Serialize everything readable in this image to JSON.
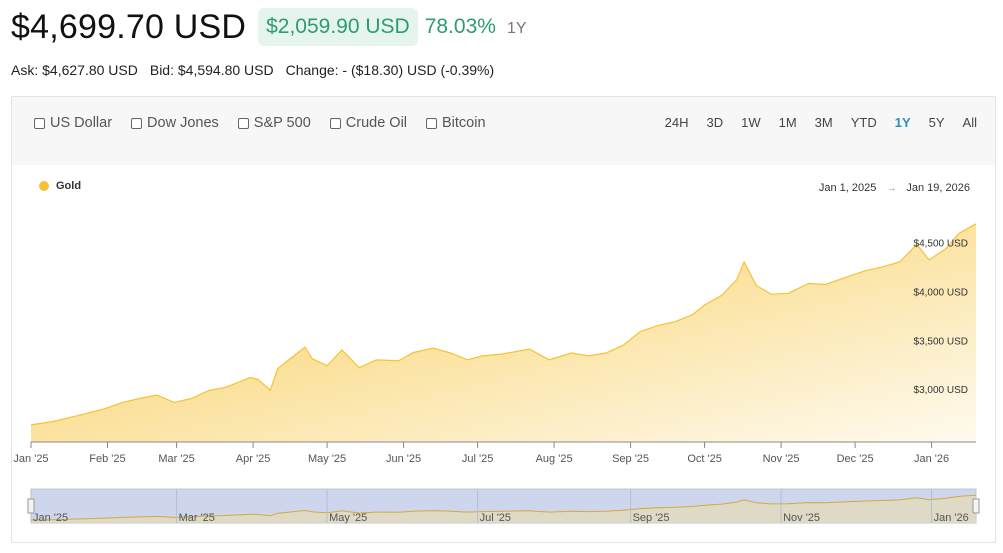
{
  "header": {
    "price": "$4,699.70 USD",
    "change_amount": "$2,059.90 USD",
    "change_percent": "78.03%",
    "period": "1Y"
  },
  "quote": {
    "ask": "Ask: $4,627.80 USD",
    "bid": "Bid: $4,594.80 USD",
    "change": "Change: - ($18.30) USD (-0.39%)"
  },
  "compare": [
    "US Dollar",
    "Dow Jones",
    "S&P 500",
    "Crude Oil",
    "Bitcoin"
  ],
  "ranges": [
    "24H",
    "3D",
    "1W",
    "1M",
    "3M",
    "YTD",
    "1Y",
    "5Y",
    "All"
  ],
  "active_range": "1Y",
  "date_range": {
    "start": "Jan 1, 2025",
    "arrow": "→",
    "end": "Jan 19, 2026"
  },
  "colors": {
    "gold": "#f6c235",
    "positive": "#2e9c6f",
    "active_range": "#2a8fbd",
    "navigator_fill": "#cdd6ec"
  },
  "chart_data": {
    "type": "area",
    "legend": [
      "Gold"
    ],
    "ylabel": "",
    "xlabel": "",
    "x_ticks": [
      "Jan '25",
      "Feb '25",
      "Mar '25",
      "Apr '25",
      "May '25",
      "Jun '25",
      "Jul '25",
      "Aug '25",
      "Sep '25",
      "Oct '25",
      "Nov '25",
      "Dec '25",
      "Jan '26"
    ],
    "y_ticks": [
      "$3,000 USD",
      "$3,500 USD",
      "$4,000 USD",
      "$4,500 USD"
    ],
    "y_tick_values": [
      3000,
      3500,
      4000,
      4500
    ],
    "ylim": [
      2460,
      4760
    ],
    "navigator_ticks": [
      "Jan '25",
      "Mar '25",
      "May '25",
      "Jul '25",
      "Sep '25",
      "Nov '25",
      "Jan '26"
    ],
    "series": [
      {
        "name": "Gold",
        "x": [
          "2025-01-01",
          "2025-01-10",
          "2025-01-20",
          "2025-01-31",
          "2025-02-07",
          "2025-02-14",
          "2025-02-21",
          "2025-02-28",
          "2025-03-07",
          "2025-03-14",
          "2025-03-21",
          "2025-03-31",
          "2025-04-03",
          "2025-04-08",
          "2025-04-11",
          "2025-04-17",
          "2025-04-22",
          "2025-04-25",
          "2025-05-01",
          "2025-05-07",
          "2025-05-14",
          "2025-05-21",
          "2025-05-30",
          "2025-06-05",
          "2025-06-13",
          "2025-06-20",
          "2025-06-27",
          "2025-07-03",
          "2025-07-11",
          "2025-07-22",
          "2025-07-30",
          "2025-08-08",
          "2025-08-15",
          "2025-08-22",
          "2025-08-29",
          "2025-09-05",
          "2025-09-12",
          "2025-09-19",
          "2025-09-26",
          "2025-10-01",
          "2025-10-08",
          "2025-10-14",
          "2025-10-17",
          "2025-10-22",
          "2025-10-28",
          "2025-11-04",
          "2025-11-12",
          "2025-11-19",
          "2025-11-28",
          "2025-12-05",
          "2025-12-12",
          "2025-12-19",
          "2025-12-26",
          "2025-12-31",
          "2026-01-07",
          "2026-01-12",
          "2026-01-19"
        ],
        "values": [
          2635,
          2670,
          2730,
          2800,
          2865,
          2905,
          2940,
          2865,
          2905,
          2985,
          3020,
          3120,
          3100,
          2990,
          3210,
          3330,
          3430,
          3310,
          3240,
          3400,
          3220,
          3300,
          3290,
          3375,
          3420,
          3370,
          3300,
          3340,
          3360,
          3410,
          3300,
          3370,
          3340,
          3370,
          3450,
          3590,
          3650,
          3690,
          3760,
          3860,
          3960,
          4120,
          4300,
          4060,
          3970,
          3980,
          4080,
          4070,
          4150,
          4210,
          4250,
          4300,
          4480,
          4320,
          4440,
          4590,
          4690
        ]
      }
    ]
  }
}
